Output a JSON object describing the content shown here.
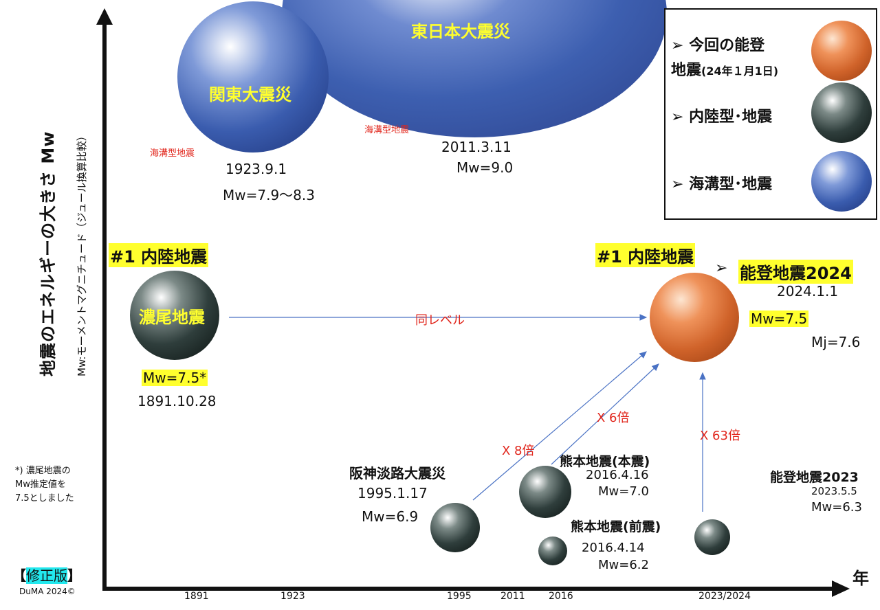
{
  "axis": {
    "y_label": "地震のエネルギーの大きさ Mw",
    "y_sublabel": "Mw:モーメントマグニチュード（ジュール換算比較）",
    "x_label": "年",
    "x_ticks": [
      "1891",
      "1923",
      "1995",
      "2011",
      "2016",
      "2023/2024"
    ]
  },
  "earthquakes": {
    "tohoku": {
      "name": "東日本大震災",
      "type": "海溝型地震",
      "date": "2011.3.11",
      "mw": "Mw=9.0"
    },
    "kanto": {
      "name": "関東大震災",
      "type": "海溝型地震",
      "date": "1923.9.1",
      "mw": "Mw=7.9～8.3"
    },
    "nobi": {
      "rank": "#1 内陸地震",
      "name": "濃尾地震",
      "mw": "Mw=7.5*",
      "date": "1891.10.28"
    },
    "noto2024": {
      "rank": "#1 内陸地震",
      "name": "能登地震2024",
      "date": "2024.1.1",
      "mw": "Mw=7.5",
      "mj": "Mj=7.6"
    },
    "hanshin": {
      "name": "阪神淡路大震災",
      "date": "1995.1.17",
      "mw": "Mw=6.9"
    },
    "kumamoto_main": {
      "name": "熊本地震(本震)",
      "date": "2016.4.16",
      "mw": "Mw=7.0"
    },
    "kumamoto_fore": {
      "name": "熊本地震(前震)",
      "date": "2016.4.14",
      "mw": "Mw=6.2"
    },
    "noto2023": {
      "name": "能登地震2023",
      "date": "2023.5.5",
      "mw": "Mw=6.3"
    }
  },
  "arrows": {
    "same_level": "同レベル",
    "x8": "X 8倍",
    "x6": "X 6倍",
    "x63": "X 63倍"
  },
  "legend": {
    "item1_line1": "今回の能登",
    "item1_line2": "地震",
    "item1_note": "(24年１月1日)",
    "item2": "内陸型･地震",
    "item3": "海溝型･地震",
    "bullet": "➢"
  },
  "footnote": {
    "line1": "*) 濃尾地震の",
    "line2": "Mw推定値を",
    "line3": "7.5としました"
  },
  "badge": {
    "open": "【",
    "text": "修正版",
    "close": "】"
  },
  "credit": "DuMA 2024©",
  "colors": {
    "ocean": "#3d5fb0",
    "inland": "#2b3a38",
    "noto": "#d9682a",
    "highlight": "#ffff2e",
    "arrow": "#4a72c4",
    "red": "#e1251b"
  }
}
